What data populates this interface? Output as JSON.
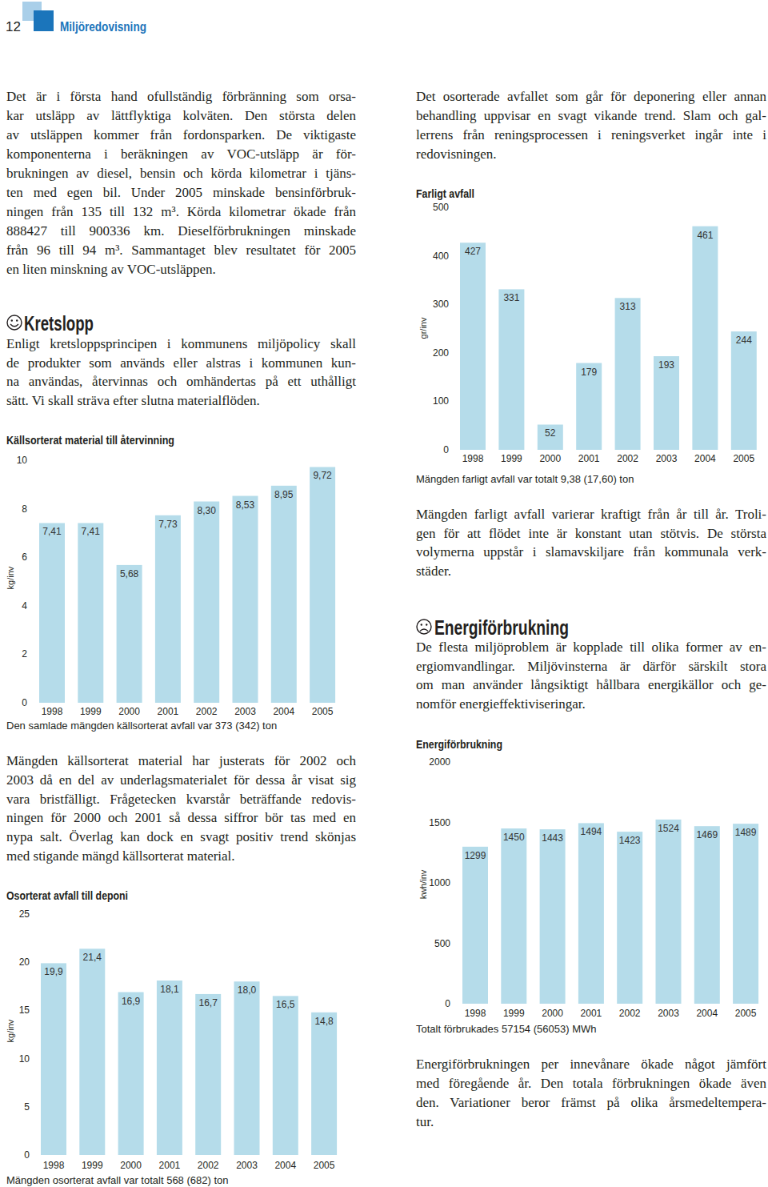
{
  "header": {
    "page_number": "12",
    "section": "Miljöredovisning"
  },
  "text": {
    "voc": [
      "Det är i första hand ofullständig förbränning som orsa-",
      "kar utsläpp av lättflyktiga kolväten. Den största delen",
      "av utsläppen kommer från fordonsparken. De viktigaste",
      "komponenterna i beräkningen av VOC-utsläpp är för-",
      "brukningen av diesel, bensin och körda kilometrar i tjäns-",
      "ten med egen bil. Under 2005 minskade bensinförbruk-",
      "ningen från 135 till 132 m³. Körda kilometrar ökade från",
      "888427 till 900336 km. Dieselförbrukningen minskade",
      "från 96 till 94 m³. Sammantaget blev resultatet för 2005",
      "en liten minskning av VOC-utsläppen."
    ],
    "kretslopp_heading": "Kretslopp",
    "kretslopp": [
      "Enligt kretsloppsprincipen i kommunens miljöpolicy skall",
      "de produkter som används eller alstras i kommunen kun-",
      "na användas, återvinnas och omhändertas på ett uthålligt",
      "sätt. Vi skall sträva efter slutna materialflöden."
    ],
    "kallsorterat_note": [
      "Mängden källsorterat material har justerats för 2002 och",
      "2003 då en del av underlagsmaterialet för dessa år visat sig",
      "vara bristfälligt. Frågetecken kvarstår beträffande redovis-",
      "ningen för 2000 och 2001 så dessa siffror bör tas med en",
      "nypa salt. Överlag kan dock en svagt positiv trend skönjas",
      "med stigande mängd källsorterat material."
    ],
    "deponi_note": [
      "Det osorterade avfallet som går för deponering eller annan",
      "behandling uppvisar en svagt vikande trend. Slam och gal-",
      "lerrens från reningsprocessen i reningsverket ingår inte i",
      "redovisningen."
    ],
    "farligt_note": [
      "Mängden farligt avfall varierar kraftigt från år till år. Troli-",
      "gen för att flödet inte är konstant utan stötvis. De största",
      "volymerna uppstår i slamavskiljare från kommunala verk-",
      "städer."
    ],
    "energi_heading": "Energiförbrukning",
    "energi": [
      "De flesta miljöproblem är kopplade till olika former av en-",
      "ergiomvandlingar. Miljövinsterna är därför särskilt stora",
      "om man använder långsiktigt hållbara energikällor och ge-",
      "nomför energieffektiviseringar."
    ],
    "energi_note": [
      "Energiförbrukningen per innevånare ökade något jämfört",
      "med föregående år. Den totala förbrukningen ökade även",
      "den. Variationer beror främst på olika årsmedeltempera-",
      "tur."
    ]
  },
  "chart_data": [
    {
      "type": "bar",
      "title": "Källsorterat material till återvinning",
      "ylabel": "kg/inv",
      "caption": "Den samlade mängden källsorterat avfall var 373 (342) ton",
      "categories": [
        "1998",
        "1999",
        "2000",
        "2001",
        "2002",
        "2003",
        "2004",
        "2005"
      ],
      "values": [
        7.41,
        7.41,
        5.68,
        7.73,
        8.3,
        8.53,
        8.95,
        9.72
      ],
      "value_labels": [
        "7,41",
        "7,41",
        "5,68",
        "7,73",
        "8,30",
        "8,53",
        "8,95",
        "9,72"
      ],
      "data_labels": true,
      "color": "#b5dcea",
      "ylim": [
        0,
        10
      ],
      "yticks": [
        0,
        2,
        4,
        6,
        8,
        10
      ]
    },
    {
      "type": "bar",
      "title": "Osorterat avfall till deponi",
      "ylabel": "kg/inv",
      "caption": "Mängden osorterat avfall var totalt 568 (682) ton",
      "categories": [
        "1998",
        "1999",
        "2000",
        "2001",
        "2002",
        "2003",
        "2004",
        "2005"
      ],
      "values": [
        19.9,
        21.4,
        16.9,
        18.1,
        16.7,
        18.0,
        16.5,
        14.8
      ],
      "value_labels": [
        "19,9",
        "21,4",
        "16,9",
        "18,1",
        "16,7",
        "18,0",
        "16,5",
        "14,8"
      ],
      "data_labels": true,
      "color": "#b5dcea",
      "ylim": [
        0,
        25
      ],
      "yticks": [
        0,
        5,
        10,
        15,
        20,
        25
      ]
    },
    {
      "type": "bar",
      "title": "Farligt avfall",
      "ylabel": "gr/inv",
      "caption": "Mängden farligt avfall var totalt 9,38 (17,60) ton",
      "categories": [
        "1998",
        "1999",
        "2000",
        "2001",
        "2002",
        "2003",
        "2004",
        "2005"
      ],
      "values": [
        427,
        331,
        52,
        179,
        313,
        193,
        461,
        244
      ],
      "data_labels": true,
      "color": "#b5dcea",
      "ylim": [
        0,
        500
      ],
      "yticks": [
        0,
        100,
        200,
        300,
        400,
        500
      ]
    },
    {
      "type": "bar",
      "title": "Energiförbrukning",
      "ylabel": "kwh/inv",
      "caption": "Totalt förbrukades 57154 (56053) MWh",
      "categories": [
        "1998",
        "1999",
        "2000",
        "2001",
        "2002",
        "2003",
        "2004",
        "2005"
      ],
      "values": [
        1299,
        1450,
        1443,
        1494,
        1423,
        1524,
        1469,
        1489
      ],
      "data_labels": true,
      "color": "#b5dcea",
      "ylim": [
        0,
        2000
      ],
      "yticks": [
        0,
        500,
        1000,
        1500,
        2000
      ]
    }
  ]
}
